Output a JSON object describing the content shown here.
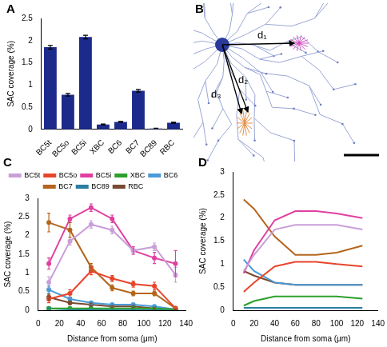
{
  "chart_data": [
    {
      "panel": "A",
      "type": "bar",
      "categories": [
        "BC5t",
        "BC5o",
        "BC5i",
        "XBC",
        "BC6",
        "BC7",
        "BC89",
        "RBC"
      ],
      "values": [
        1.85,
        0.78,
        2.08,
        0.11,
        0.17,
        0.87,
        0.02,
        0.15
      ],
      "errors": [
        0.04,
        0.03,
        0.04,
        0.01,
        0.01,
        0.03,
        0.005,
        0.01
      ],
      "color": "#1c2a8c",
      "ylabel": "SAC coverage (%)",
      "ylim": [
        0,
        2.5
      ],
      "yticks": [
        0,
        0.5,
        1,
        1.5,
        2,
        2.5
      ],
      "grid": false
    },
    {
      "panel": "C",
      "type": "line",
      "xlabel": "Distance from soma (μm)",
      "ylabel": "SAC coverage (%)",
      "x": [
        10,
        30,
        50,
        70,
        90,
        110,
        130
      ],
      "series": [
        {
          "name": "BC5t",
          "color": "#c99fd9",
          "values": [
            0.75,
            1.85,
            2.3,
            2.15,
            1.6,
            1.7,
            0.95
          ],
          "errors": [
            0.15,
            0.1,
            0.1,
            0.1,
            0.1,
            0.1,
            0.2
          ]
        },
        {
          "name": "BC5o",
          "color": "#e8452c",
          "values": [
            0.3,
            0.45,
            1.05,
            0.85,
            0.7,
            0.65,
            0.05
          ],
          "errors": [
            0.1,
            0.1,
            0.1,
            0.08,
            0.08,
            0.1,
            0.05
          ]
        },
        {
          "name": "BC5i",
          "color": "#e040a0",
          "values": [
            1.25,
            2.45,
            2.75,
            2.45,
            1.6,
            1.4,
            1.25
          ],
          "errors": [
            0.15,
            0.1,
            0.1,
            0.1,
            0.1,
            0.15,
            0.35
          ]
        },
        {
          "name": "XBC",
          "color": "#2ca02c",
          "values": [
            0.05,
            0.05,
            0.05,
            0.05,
            0.05,
            0.05,
            0.02
          ],
          "errors": [
            0.02,
            0.02,
            0.02,
            0.02,
            0.02,
            0.02,
            0.01
          ]
        },
        {
          "name": "BC6",
          "color": "#4a9ad8",
          "values": [
            0.55,
            0.3,
            0.2,
            0.15,
            0.15,
            0.1,
            0.02
          ],
          "errors": [
            0.1,
            0.05,
            0.04,
            0.03,
            0.03,
            0.03,
            0.01
          ]
        },
        {
          "name": "BC7",
          "color": "#b5651d",
          "values": [
            2.35,
            2.15,
            1.15,
            0.6,
            0.45,
            0.45,
            0.05
          ],
          "errors": [
            0.25,
            0.2,
            0.1,
            0.08,
            0.06,
            0.06,
            0.05
          ]
        },
        {
          "name": "BC89",
          "color": "#2a7fa0",
          "values": [
            0.05,
            0.02,
            0.02,
            0.01,
            0.01,
            0.01,
            0.0
          ],
          "errors": [
            0.02,
            0.01,
            0.01,
            0.01,
            0.01,
            0.01,
            0.0
          ]
        },
        {
          "name": "RBC",
          "color": "#7a4a2e",
          "values": [
            0.35,
            0.2,
            0.15,
            0.1,
            0.1,
            0.05,
            0.02
          ],
          "errors": [
            0.08,
            0.05,
            0.04,
            0.03,
            0.03,
            0.02,
            0.01
          ]
        }
      ],
      "marker": "circle",
      "legend": "top",
      "xlim": [
        0,
        140
      ],
      "xticks": [
        0,
        20,
        40,
        60,
        80,
        100,
        120,
        140
      ],
      "ylim": [
        0,
        3
      ],
      "yticks": [
        0,
        0.5,
        1,
        1.5,
        2,
        2.5,
        3
      ],
      "grid": false
    },
    {
      "panel": "D",
      "type": "line",
      "xlabel": "Distance from soma (μm)",
      "ylabel": "SAC coverage (%)",
      "x": [
        10,
        20,
        40,
        60,
        80,
        100,
        125
      ],
      "series": [
        {
          "name": "BC5t",
          "color": "#c99fd9",
          "values": [
            0.85,
            1.2,
            1.75,
            1.85,
            1.85,
            1.85,
            1.75
          ]
        },
        {
          "name": "BC5o",
          "color": "#e8452c",
          "values": [
            0.4,
            0.6,
            0.95,
            1.05,
            1.05,
            1.0,
            0.95
          ]
        },
        {
          "name": "BC5i",
          "color": "#e040a0",
          "values": [
            0.8,
            1.3,
            1.95,
            2.15,
            2.15,
            2.1,
            2.0
          ]
        },
        {
          "name": "XBC",
          "color": "#2ca02c",
          "values": [
            0.1,
            0.2,
            0.3,
            0.3,
            0.3,
            0.3,
            0.25
          ]
        },
        {
          "name": "BC6",
          "color": "#4a9ad8",
          "values": [
            1.1,
            0.85,
            0.6,
            0.55,
            0.55,
            0.55,
            0.55
          ]
        },
        {
          "name": "BC7",
          "color": "#b5651d",
          "values": [
            2.4,
            2.2,
            1.6,
            1.2,
            1.2,
            1.25,
            1.4
          ]
        },
        {
          "name": "BC89",
          "color": "#2a7fa0",
          "values": [
            0.05,
            0.05,
            0.05,
            0.05,
            0.05,
            0.05,
            0.05
          ]
        },
        {
          "name": "RBC",
          "color": "#7a4a2e",
          "values": [
            0.85,
            0.75,
            0.6,
            0.55,
            0.55,
            0.55,
            0.55
          ]
        }
      ],
      "xlim": [
        0,
        140
      ],
      "xticks": [
        0,
        20,
        40,
        60,
        80,
        100,
        120,
        140
      ],
      "ylim": [
        0,
        3
      ],
      "yticks": [
        0,
        0.5,
        1,
        1.5,
        2,
        2.5,
        3
      ],
      "grid": false
    }
  ],
  "diagram": {
    "panel": "B",
    "labels": [
      "d₁",
      "d₂",
      "d₃"
    ]
  }
}
